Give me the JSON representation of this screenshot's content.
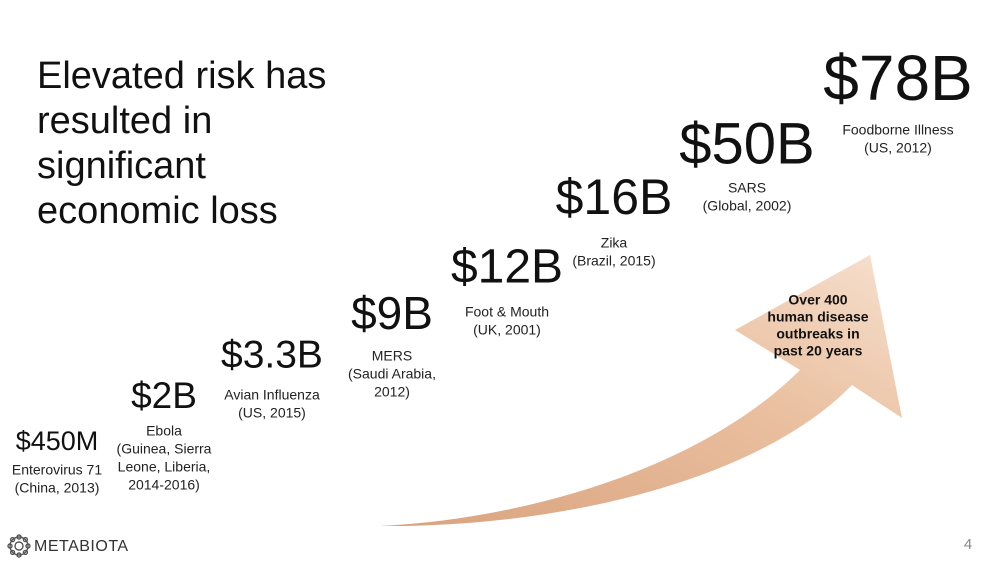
{
  "title": [
    "Elevated risk has",
    "resulted in",
    "significant",
    "economic loss"
  ],
  "items": [
    {
      "amount": "$450M",
      "lines": [
        "Enterovirus 71",
        "(China, 2013)"
      ]
    },
    {
      "amount": "$2B",
      "lines": [
        "Ebola",
        "(Guinea, Sierra",
        "Leone, Liberia,",
        "2014-2016)"
      ]
    },
    {
      "amount": "$3.3B",
      "lines": [
        "Avian Influenza",
        "(US, 2015)"
      ]
    },
    {
      "amount": "$9B",
      "lines": [
        "MERS",
        "(Saudi Arabia,",
        "2012)"
      ]
    },
    {
      "amount": "$12B",
      "lines": [
        "Foot & Mouth",
        "(UK, 2001)"
      ]
    },
    {
      "amount": "$16B",
      "lines": [
        "Zika",
        "(Brazil, 2015)"
      ]
    },
    {
      "amount": "$50B",
      "lines": [
        "SARS",
        "(Global, 2002)"
      ]
    },
    {
      "amount": "$78B",
      "lines": [
        "Foodborne Illness",
        "(US, 2012)"
      ]
    }
  ],
  "arrow_text": [
    "Over 400",
    "human disease",
    "outbreaks in",
    "past 20 years"
  ],
  "logo": "METABIOTA",
  "page_number": "4"
}
